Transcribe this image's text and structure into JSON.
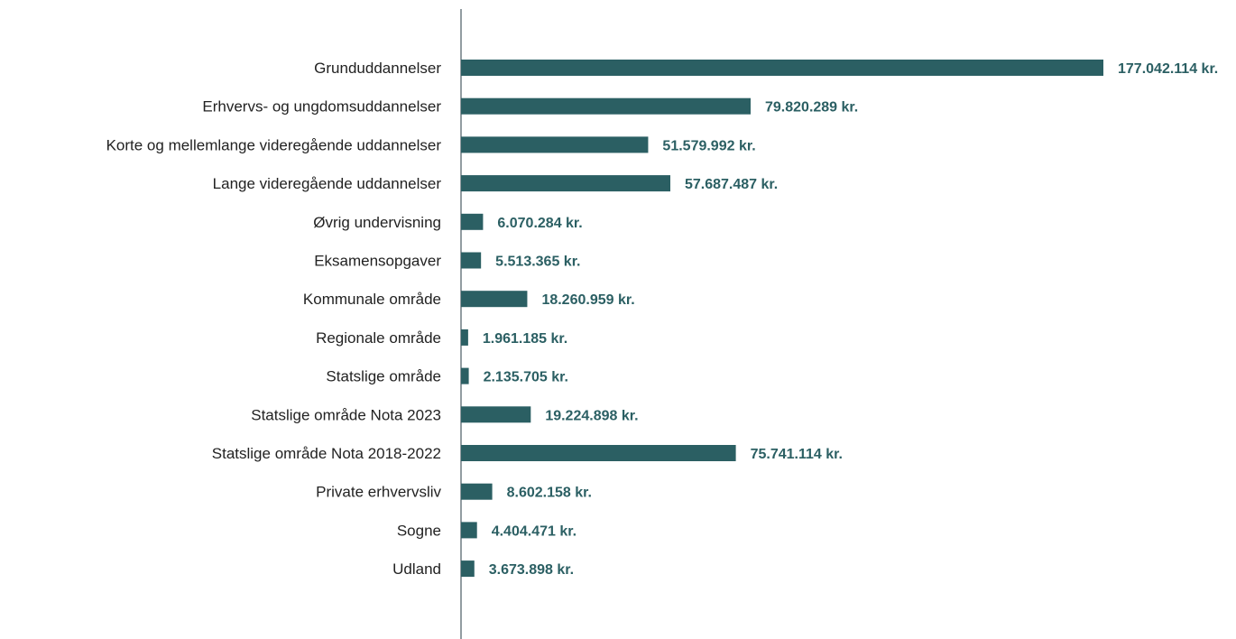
{
  "chart_data": {
    "type": "bar",
    "orientation": "horizontal",
    "title": "",
    "xlabel": "",
    "ylabel": "",
    "grid": false,
    "legend": "none",
    "bar_color": "#2b5f63",
    "value_label_color": "#2b5f63",
    "axis_color": "#4a5a63",
    "categories": [
      "Grunduddannelser",
      "Erhvervs- og ungdomsuddannelser",
      "Korte og mellemlange videregående uddannelser",
      "Lange videregående uddannelser",
      "Øvrig undervisning",
      "Eksamensopgaver",
      "Kommunale område",
      "Regionale område",
      "Statslige område",
      "Statslige område Nota 2023",
      "Statslige område Nota 2018-2022",
      "Private erhvervsliv",
      "Sogne",
      "Udland"
    ],
    "values": [
      177042114,
      79820289,
      51579992,
      57687487,
      6070284,
      5513365,
      18260959,
      1961185,
      2135705,
      19224898,
      75741114,
      8602158,
      4404471,
      3673898
    ],
    "value_labels": [
      "177.042.114 kr.",
      "79.820.289 kr.",
      "51.579.992 kr.",
      "57.687.487 kr.",
      "6.070.284 kr.",
      "5.513.365 kr.",
      "18.260.959 kr.",
      "1.961.185 kr.",
      "2.135.705 kr.",
      "19.224.898 kr.",
      "75.741.114 kr.",
      "8.602.158 kr.",
      "4.404.471 kr.",
      "3.673.898 kr."
    ],
    "xlim": [
      0,
      177042114
    ]
  }
}
